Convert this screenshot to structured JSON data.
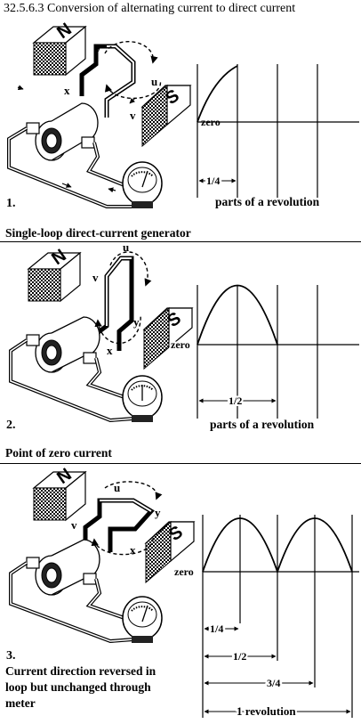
{
  "title": "32.5.6.3 Conversion of alternating current to direct current",
  "magnet_labels": {
    "north": "N",
    "south": "S"
  },
  "panels": [
    {
      "number": "1.",
      "loop_labels": {
        "y": "y",
        "u": "u",
        "x": "x",
        "v": "v"
      },
      "zero_label": "zero",
      "interval_label": "1/4",
      "axis_caption": "parts of a revolution",
      "heading": "Single-loop direct-current generator"
    },
    {
      "number": "2.",
      "loop_labels": {
        "u": "u",
        "v": "v",
        "y": "y",
        "x": "x"
      },
      "zero_label": "zero",
      "interval_label": "1/2",
      "axis_caption": "parts of a revolution",
      "heading": "Point of zero current"
    },
    {
      "number": "3.",
      "loop_labels": {
        "u": "u",
        "y": "y",
        "v": "v",
        "x": "x"
      },
      "zero_label": "zero",
      "intervals": [
        "1/4",
        "1/2",
        "3/4",
        "1 revolution"
      ],
      "caption_lines": [
        "Current direction reversed in",
        "loop but unchanged through",
        "meter"
      ]
    }
  ]
}
